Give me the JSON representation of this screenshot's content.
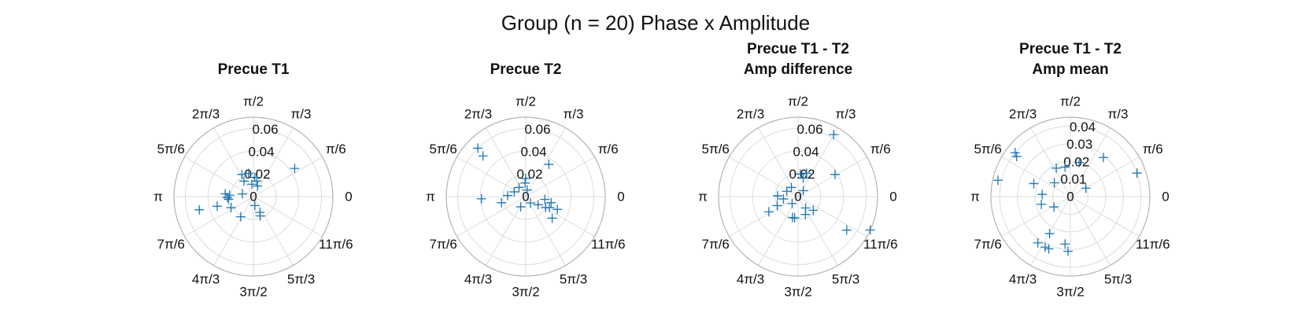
{
  "figure": {
    "title": "Group (n = 20) Phase x Amplitude"
  },
  "chart_data": [
    {
      "type": "scatter",
      "projection": "polar",
      "title": [
        "Precue T1"
      ],
      "theta_labels": [
        "0",
        "π/6",
        "π/3",
        "π/2",
        "2π/3",
        "5π/6",
        "π",
        "7π/6",
        "4π/3",
        "3π/2",
        "5π/3",
        "11π/6"
      ],
      "r_ticks": [
        "0",
        "0.02",
        "0.04",
        "0.06"
      ],
      "r_max": 0.07,
      "marker": "+",
      "color": "#1f77b4",
      "grid": true,
      "points": [
        {
          "theta": 0.6,
          "r": 0.044
        },
        {
          "theta": 1.78,
          "r": 0.021
        },
        {
          "theta": 2.05,
          "r": 0.022
        },
        {
          "theta": 2.12,
          "r": 0.016
        },
        {
          "theta": 1.5,
          "r": 0.017
        },
        {
          "theta": 1.35,
          "r": 0.014
        },
        {
          "theta": 1.7,
          "r": 0.011
        },
        {
          "theta": 1.2,
          "r": 0.01
        },
        {
          "theta": 2.9,
          "r": 0.01
        },
        {
          "theta": 3.08,
          "r": 0.021
        },
        {
          "theta": 3.04,
          "r": 0.025
        },
        {
          "theta": 3.17,
          "r": 0.023
        },
        {
          "theta": 3.25,
          "r": 0.022
        },
        {
          "theta": 3.4,
          "r": 0.033
        },
        {
          "theta": 3.38,
          "r": 0.049
        },
        {
          "theta": 3.6,
          "r": 0.022
        },
        {
          "theta": 4.15,
          "r": 0.021
        },
        {
          "theta": 4.87,
          "r": 0.008
        },
        {
          "theta": 5.1,
          "r": 0.015
        },
        {
          "theta": 5.05,
          "r": 0.018
        }
      ]
    },
    {
      "type": "scatter",
      "projection": "polar",
      "title": [
        "Precue T2"
      ],
      "theta_labels": [
        "0",
        "π/6",
        "π/3",
        "π/2",
        "2π/3",
        "5π/6",
        "π",
        "7π/6",
        "4π/3",
        "3π/2",
        "5π/3",
        "11π/6"
      ],
      "r_ticks": [
        "0",
        "0.02",
        "0.04",
        "0.06"
      ],
      "r_max": 0.07,
      "marker": "+",
      "color": "#1f77b4",
      "grid": true,
      "points": [
        {
          "theta": 2.35,
          "r": 0.06
        },
        {
          "theta": 2.38,
          "r": 0.052
        },
        {
          "theta": 0.95,
          "r": 0.035
        },
        {
          "theta": 1.58,
          "r": 0.016
        },
        {
          "theta": 1.62,
          "r": 0.012
        },
        {
          "theta": 2.2,
          "r": 0.01
        },
        {
          "theta": 1.35,
          "r": 0.006
        },
        {
          "theta": 2.75,
          "r": 0.011
        },
        {
          "theta": 3.19,
          "r": 0.039
        },
        {
          "theta": 3.08,
          "r": 0.016
        },
        {
          "theta": 3.39,
          "r": 0.022
        },
        {
          "theta": 4.25,
          "r": 0.01
        },
        {
          "theta": 5.35,
          "r": 0.007
        },
        {
          "theta": 5.7,
          "r": 0.013
        },
        {
          "theta": 5.85,
          "r": 0.023
        },
        {
          "theta": 6.05,
          "r": 0.023
        },
        {
          "theta": 5.9,
          "r": 0.03
        },
        {
          "theta": 5.6,
          "r": 0.03
        },
        {
          "theta": 5.78,
          "r": 0.02
        },
        {
          "theta": 6.14,
          "r": 0.017
        }
      ]
    },
    {
      "type": "scatter",
      "projection": "polar",
      "title": [
        "Precue T1 - T2",
        "Amp difference"
      ],
      "theta_labels": [
        "0",
        "π/6",
        "π/3",
        "π/2",
        "2π/3",
        "5π/6",
        "π",
        "7π/6",
        "4π/3",
        "3π/2",
        "5π/3",
        "11π/6"
      ],
      "r_ticks": [
        "0",
        "0.02",
        "0.04",
        "0.06"
      ],
      "r_max": 0.07,
      "marker": "+",
      "color": "#1f77b4",
      "grid": true,
      "points": [
        {
          "theta": 1.05,
          "r": 0.063
        },
        {
          "theta": 0.54,
          "r": 0.038
        },
        {
          "theta": 5.68,
          "r": 0.052
        },
        {
          "theta": 5.85,
          "r": 0.07
        },
        {
          "theta": 1.22,
          "r": 0.022
        },
        {
          "theta": 1.47,
          "r": 0.02
        },
        {
          "theta": 1.3,
          "r": 0.017
        },
        {
          "theta": 2.2,
          "r": 0.01
        },
        {
          "theta": 2.7,
          "r": 0.011
        },
        {
          "theta": 3.1,
          "r": 0.018
        },
        {
          "theta": 3.3,
          "r": 0.013
        },
        {
          "theta": 3.55,
          "r": 0.02
        },
        {
          "theta": 3.62,
          "r": 0.029
        },
        {
          "theta": 4.55,
          "r": 0.019
        },
        {
          "theta": 4.45,
          "r": 0.019
        },
        {
          "theta": 5.1,
          "r": 0.017
        },
        {
          "theta": 5.3,
          "r": 0.012
        },
        {
          "theta": 5.55,
          "r": 0.018
        },
        {
          "theta": 0.85,
          "r": 0.007
        },
        {
          "theta": 4.0,
          "r": 0.008
        }
      ]
    },
    {
      "type": "scatter",
      "projection": "polar",
      "title": [
        "Precue T1 - T2",
        "Amp mean"
      ],
      "theta_labels": [
        "0",
        "π/6",
        "π/3",
        "π/2",
        "2π/3",
        "5π/6",
        "π",
        "7π/6",
        "4π/3",
        "3π/2",
        "5π/3",
        "11π/6"
      ],
      "r_ticks": [
        "0",
        "0.01",
        "0.02",
        "0.03",
        "0.04"
      ],
      "r_max": 0.045,
      "marker": "+",
      "color": "#1f77b4",
      "grid": true,
      "points": [
        {
          "theta": 0.34,
          "r": 0.04
        },
        {
          "theta": 0.87,
          "r": 0.029
        },
        {
          "theta": 1.32,
          "r": 0.02
        },
        {
          "theta": 0.5,
          "r": 0.01
        },
        {
          "theta": 2.03,
          "r": 0.018
        },
        {
          "theta": 1.75,
          "r": 0.017
        },
        {
          "theta": 2.47,
          "r": 0.04
        },
        {
          "theta": 2.5,
          "r": 0.038
        },
        {
          "theta": 2.92,
          "r": 0.042
        },
        {
          "theta": 2.43,
          "r": 0.012
        },
        {
          "theta": 2.8,
          "r": 0.022
        },
        {
          "theta": 3.06,
          "r": 0.016
        },
        {
          "theta": 3.4,
          "r": 0.017
        },
        {
          "theta": 3.7,
          "r": 0.011
        },
        {
          "theta": 4.2,
          "r": 0.024
        },
        {
          "theta": 4.1,
          "r": 0.032
        },
        {
          "theta": 4.25,
          "r": 0.032
        },
        {
          "theta": 4.32,
          "r": 0.032
        },
        {
          "theta": 4.6,
          "r": 0.027
        },
        {
          "theta": 4.67,
          "r": 0.031
        }
      ]
    }
  ]
}
